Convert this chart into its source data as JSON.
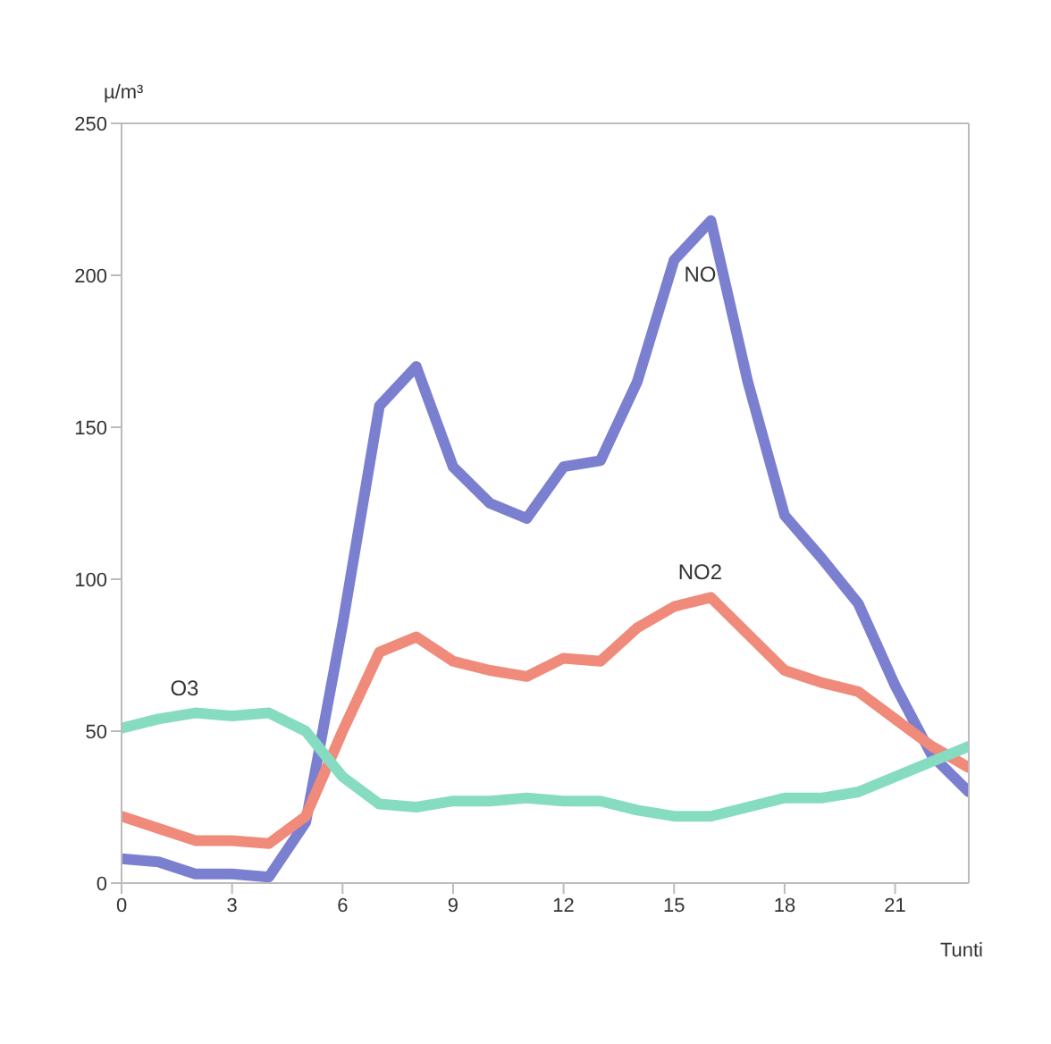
{
  "chart_data": {
    "type": "line",
    "ylabel": "µ/m³",
    "xlabel": "Tunti",
    "x": [
      0,
      1,
      2,
      3,
      4,
      5,
      6,
      7,
      8,
      9,
      10,
      11,
      12,
      13,
      14,
      15,
      16,
      17,
      18,
      19,
      20,
      21,
      22,
      23
    ],
    "series": [
      {
        "name": "NO",
        "color": "#7b7fd0",
        "values": [
          8,
          7,
          3,
          3,
          2,
          20,
          85,
          157,
          170,
          137,
          125,
          120,
          137,
          139,
          165,
          205,
          218,
          165,
          121,
          107,
          92,
          65,
          42,
          30
        ]
      },
      {
        "name": "NO2",
        "color": "#f08a7a",
        "values": [
          22,
          18,
          14,
          14,
          13,
          22,
          50,
          76,
          81,
          73,
          70,
          68,
          74,
          73,
          84,
          91,
          94,
          82,
          70,
          66,
          63,
          54,
          45,
          38
        ]
      },
      {
        "name": "O3",
        "color": "#86dcc0",
        "values": [
          51,
          54,
          56,
          55,
          56,
          50,
          35,
          26,
          25,
          27,
          27,
          28,
          27,
          27,
          24,
          22,
          22,
          25,
          28,
          28,
          30,
          35,
          40,
          45
        ]
      }
    ],
    "xlim": [
      0,
      23
    ],
    "xticks": [
      0,
      3,
      6,
      9,
      12,
      15,
      18,
      21
    ],
    "ylim": [
      0,
      250
    ],
    "yticks": [
      0,
      50,
      100,
      150,
      200,
      250
    ],
    "grid": false,
    "legend": false,
    "marker": "none",
    "line_style": "solid"
  }
}
